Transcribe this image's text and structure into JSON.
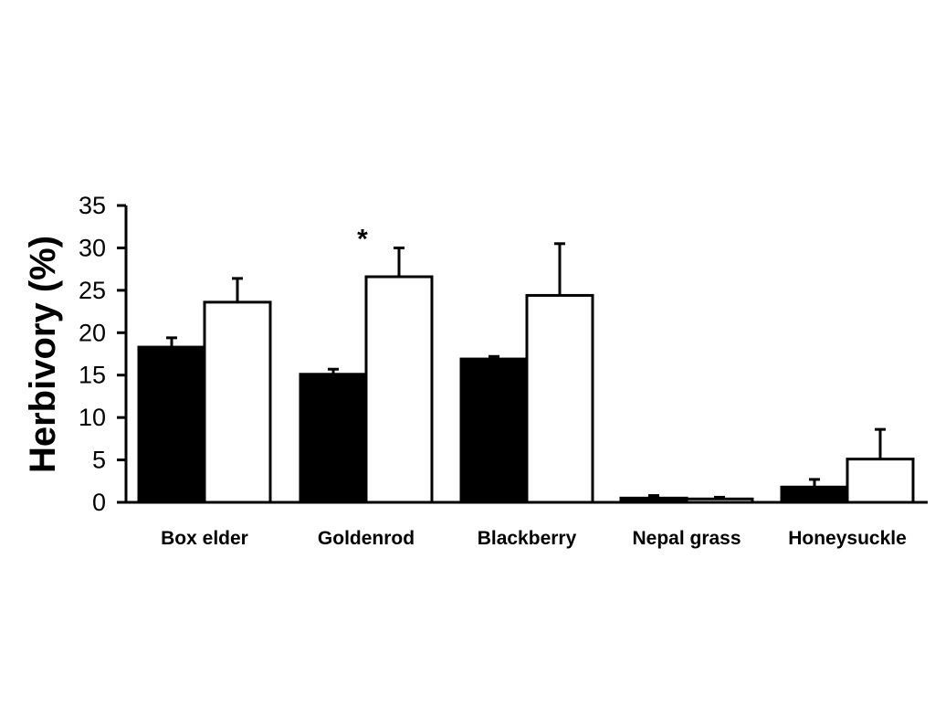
{
  "chart_data": {
    "type": "bar",
    "title": "",
    "xlabel": "",
    "ylabel": "Herbivory (%)",
    "ylim": [
      0,
      35
    ],
    "yticks": [
      0,
      5,
      10,
      15,
      20,
      25,
      30,
      35
    ],
    "grid": false,
    "legend": "none",
    "categories": [
      "Box elder",
      "Goldenrod",
      "Blackberry",
      "Nepal grass",
      "Honeysuckle"
    ],
    "series": [
      {
        "fill": "#000000",
        "values": [
          18.3,
          15.1,
          16.9,
          0.5,
          1.8
        ],
        "error": [
          1.1,
          0.6,
          0.3,
          0.3,
          0.9
        ]
      },
      {
        "fill": "#ffffff",
        "values": [
          23.6,
          26.6,
          24.4,
          0.4,
          5.1
        ],
        "error": [
          2.8,
          3.4,
          6.1,
          0.2,
          3.5
        ]
      }
    ],
    "annotations": [
      {
        "text": "*",
        "category": "Goldenrod",
        "series": 1
      }
    ]
  }
}
